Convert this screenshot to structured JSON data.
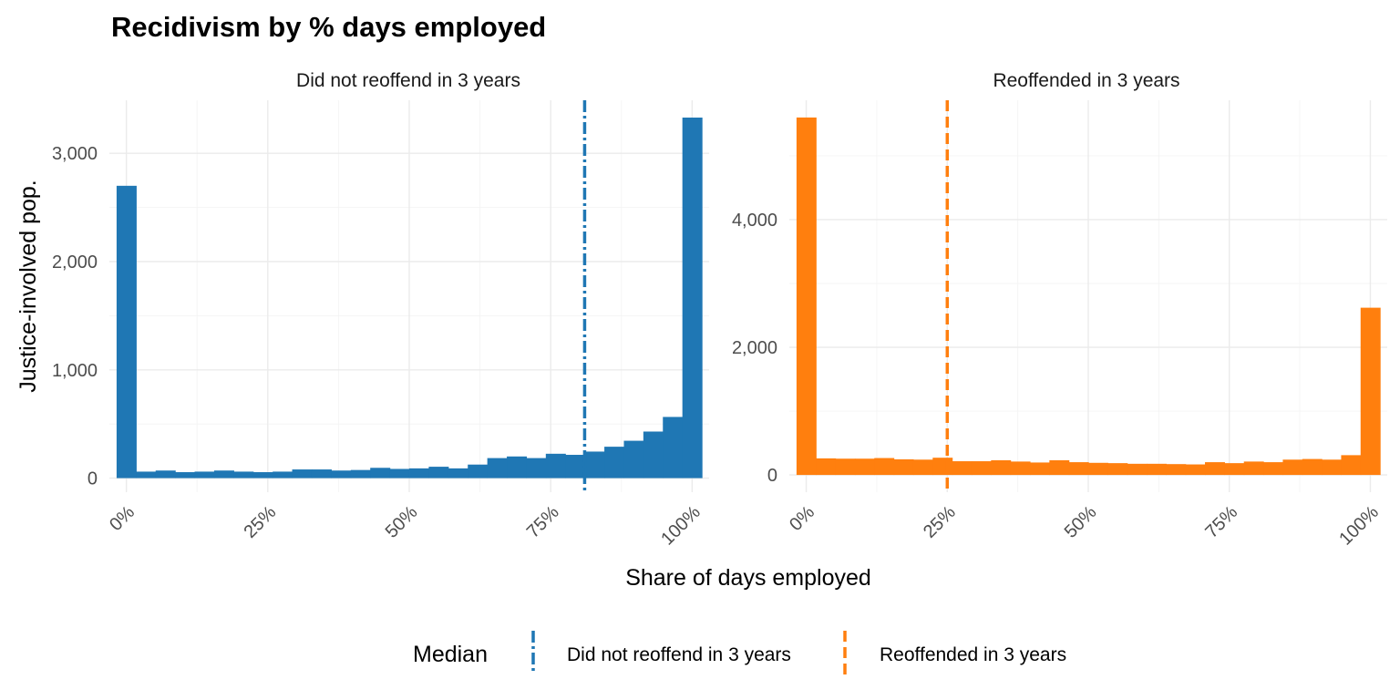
{
  "chart_data": {
    "type": "bar",
    "title": "Recidivism by % days employed",
    "xlabel": "Share of days employed",
    "ylabel": "Justice-involved pop.",
    "x_range": [
      -0.03,
      1.03
    ],
    "legend": {
      "title": "Median",
      "position": "bottom",
      "entries": [
        {
          "label": "Did not reoffend in 3 years",
          "color": "#1f77b4",
          "linetype": "dotdash"
        },
        {
          "label": "Reoffended in 3 years",
          "color": "#ff7f0e",
          "linetype": "dashed"
        }
      ]
    },
    "panels": [
      {
        "strip": "Did not reoffend in 3 years",
        "color": "#1f77b4",
        "median": 0.81,
        "median_linetype": "dotdash",
        "ylim": [
          -130,
          3490
        ],
        "y_ticks": [
          0,
          1000,
          2000,
          3000
        ],
        "y_tick_labels": [
          "0",
          "1,000",
          "2,000",
          "3,000"
        ],
        "x_ticks": [
          0,
          0.25,
          0.5,
          0.75,
          1.0
        ],
        "x_tick_labels": [
          "0%",
          "25%",
          "50%",
          "75%",
          "100%"
        ],
        "bins": {
          "x": [
            0.0,
            0.0345,
            0.069,
            0.1034,
            0.1379,
            0.1724,
            0.2069,
            0.2414,
            0.2759,
            0.3103,
            0.3448,
            0.3793,
            0.4138,
            0.4483,
            0.4828,
            0.5172,
            0.5517,
            0.5862,
            0.6207,
            0.6552,
            0.6897,
            0.7241,
            0.7586,
            0.7931,
            0.8276,
            0.8621,
            0.8966,
            0.931,
            0.9655,
            1.0
          ],
          "values": [
            2700,
            60,
            70,
            55,
            60,
            70,
            60,
            55,
            60,
            80,
            80,
            70,
            75,
            95,
            85,
            90,
            105,
            90,
            125,
            185,
            200,
            185,
            225,
            215,
            245,
            290,
            345,
            430,
            565,
            3330
          ]
        }
      },
      {
        "strip": "Reoffended in 3 years",
        "color": "#ff7f0e",
        "median": 0.25,
        "median_linetype": "dashed",
        "ylim": [
          -270,
          5870
        ],
        "y_ticks": [
          0,
          2000,
          4000
        ],
        "y_tick_labels": [
          "0",
          "2,000",
          "4,000"
        ],
        "x_ticks": [
          0,
          0.25,
          0.5,
          0.75,
          1.0
        ],
        "x_tick_labels": [
          "0%",
          "25%",
          "50%",
          "75%",
          "100%"
        ],
        "bins": {
          "x": [
            0.0,
            0.0345,
            0.069,
            0.1034,
            0.1379,
            0.1724,
            0.2069,
            0.2414,
            0.2759,
            0.3103,
            0.3448,
            0.3793,
            0.4138,
            0.4483,
            0.4828,
            0.5172,
            0.5517,
            0.5862,
            0.6207,
            0.6552,
            0.6897,
            0.7241,
            0.7586,
            0.7931,
            0.8276,
            0.8621,
            0.8966,
            0.931,
            0.9655,
            1.0
          ],
          "values": [
            5600,
            260,
            255,
            255,
            265,
            245,
            240,
            270,
            215,
            215,
            230,
            210,
            195,
            230,
            200,
            190,
            185,
            175,
            175,
            170,
            165,
            200,
            185,
            210,
            200,
            240,
            250,
            240,
            310,
            2620
          ]
        }
      }
    ]
  }
}
